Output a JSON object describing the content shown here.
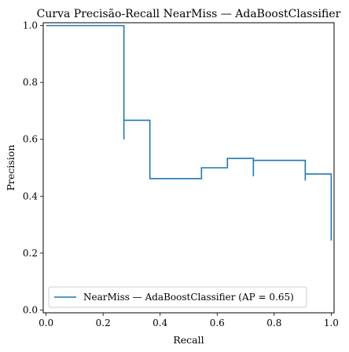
{
  "chart_data": {
    "type": "line",
    "title": "Curva Precisão-Recall NearMiss — AdaBoostClassifier",
    "xlabel": "Recall",
    "ylabel": "Precision",
    "xlim": [
      -0.01,
      1.01
    ],
    "ylim": [
      -0.01,
      1.01
    ],
    "x_ticks": [
      0.0,
      0.2,
      0.4,
      0.6,
      0.8,
      1.0
    ],
    "y_ticks": [
      0.0,
      0.2,
      0.4,
      0.6,
      0.8,
      1.0
    ],
    "x_tick_labels": [
      "0.0",
      "0.2",
      "0.4",
      "0.6",
      "0.8",
      "1.0"
    ],
    "y_tick_labels": [
      "0.0",
      "0.2",
      "0.4",
      "0.6",
      "0.8",
      "1.0"
    ],
    "grid": false,
    "legend_position": "lower-left",
    "series": [
      {
        "name": "NearMiss — AdaBoostClassifier (AP = 0.65)",
        "color": "#1f77b4",
        "drawstyle": "steps-post",
        "points": [
          [
            0.0,
            1.0
          ],
          [
            0.273,
            1.0
          ],
          [
            0.273,
            0.6
          ],
          [
            0.273,
            0.667
          ],
          [
            0.364,
            0.667
          ],
          [
            0.364,
            0.462
          ],
          [
            0.545,
            0.462
          ],
          [
            0.545,
            0.5
          ],
          [
            0.636,
            0.5
          ],
          [
            0.636,
            0.533
          ],
          [
            0.727,
            0.533
          ],
          [
            0.727,
            0.47
          ],
          [
            0.727,
            0.526
          ],
          [
            0.909,
            0.526
          ],
          [
            0.909,
            0.455
          ],
          [
            0.909,
            0.478
          ],
          [
            1.0,
            0.478
          ],
          [
            1.0,
            0.244
          ]
        ]
      }
    ]
  }
}
